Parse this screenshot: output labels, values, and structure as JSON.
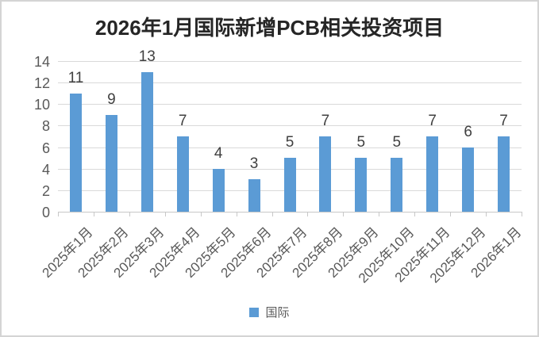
{
  "title": "2026年1月国际新增PCB相关投资项目",
  "legend": {
    "label": "国际",
    "swatch_color": "#5B9BD5"
  },
  "colors": {
    "bar": "#5B9BD5",
    "gridline": "#D9D9D9",
    "axis_line": "#C8C8C8",
    "axis_text": "#595959",
    "data_label_text": "#404040",
    "title_text": "#262626",
    "border": "#D4D4D4",
    "background": "#FFFFFF"
  },
  "chart_data": {
    "type": "bar",
    "title": "2026年1月国际新增PCB相关投资项目",
    "categories": [
      "2025年1月",
      "2025年2月",
      "2025年3月",
      "2025年4月",
      "2025年5月",
      "2025年6月",
      "2025年7月",
      "2025年8月",
      "2025年9月",
      "2025年10月",
      "2025年11月",
      "2025年12月",
      "2026年1月"
    ],
    "series": [
      {
        "name": "国际",
        "values": [
          11,
          9,
          13,
          7,
          4,
          3,
          5,
          7,
          5,
          5,
          7,
          6,
          7
        ]
      }
    ],
    "ylim": [
      0,
      14
    ],
    "yticks": [
      0,
      2,
      4,
      6,
      8,
      10,
      12,
      14
    ],
    "grid": true,
    "data_labels": true,
    "legend_position": "bottom",
    "x_label_rotation": 45
  }
}
